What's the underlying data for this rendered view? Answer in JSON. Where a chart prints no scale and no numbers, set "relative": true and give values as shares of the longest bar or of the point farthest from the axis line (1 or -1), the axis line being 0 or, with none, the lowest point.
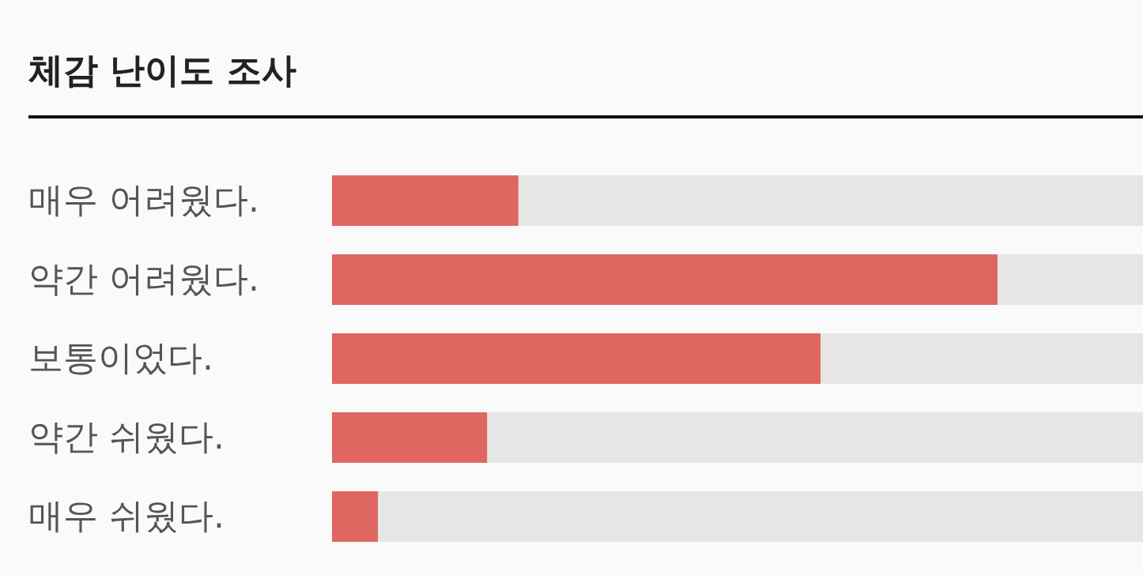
{
  "chart_data": {
    "type": "bar",
    "orientation": "horizontal",
    "relative": true,
    "title": "체감 난이도 조사",
    "categories": [
      "매우 어려웠다.",
      "약간 어려웠다.",
      "보통이었다.",
      "약간 쉬웠다.",
      "매우 쉬웠다."
    ],
    "values": [
      0.28,
      1,
      0.734,
      0.233,
      0.069
    ],
    "color": "#e06761"
  }
}
